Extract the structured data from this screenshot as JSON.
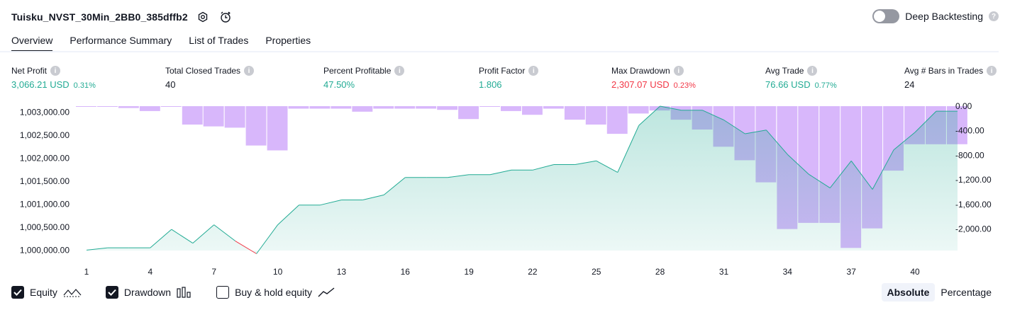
{
  "header": {
    "strategy_title": "Tuisku_NVST_30Min_2BB0_385dffb2"
  },
  "deep_backtesting": {
    "label": "Deep Backtesting",
    "enabled": false
  },
  "tabs": [
    {
      "label": "Overview",
      "active": true
    },
    {
      "label": "Performance Summary",
      "active": false
    },
    {
      "label": "List of Trades",
      "active": false
    },
    {
      "label": "Properties",
      "active": false
    }
  ],
  "metrics": {
    "net_profit": {
      "label": "Net Profit",
      "value": "3,066.21 USD",
      "pct": "0.31%"
    },
    "total_closed_trades": {
      "label": "Total Closed Trades",
      "value": "40"
    },
    "percent_profitable": {
      "label": "Percent Profitable",
      "value": "47.50%"
    },
    "profit_factor": {
      "label": "Profit Factor",
      "value": "1.806"
    },
    "max_drawdown": {
      "label": "Max Drawdown",
      "value": "2,307.07 USD",
      "pct": "0.23%"
    },
    "avg_trade": {
      "label": "Avg Trade",
      "value": "76.66 USD",
      "pct": "0.77%"
    },
    "avg_bars": {
      "label": "Avg # Bars in Trades",
      "value": "24"
    }
  },
  "colors": {
    "green": "#22ab94",
    "red": "#f23645",
    "drawdown_fill": "#d6b3fb",
    "equity_fill": "#cdeee6",
    "equity_line": "#22ab94"
  },
  "chart_data": {
    "type": "area",
    "x_ticks": [
      "1",
      "4",
      "7",
      "10",
      "13",
      "16",
      "19",
      "22",
      "25",
      "28",
      "31",
      "34",
      "37",
      "40"
    ],
    "left_axis": {
      "ticks": [
        "1,003,000.00",
        "1,002,500.00",
        "1,002,000.00",
        "1,001,500.00",
        "1,001,000.00",
        "1,000,500.00",
        "1,000,000.00"
      ],
      "range": [
        999990,
        1003130
      ]
    },
    "right_axis": {
      "ticks": [
        "0.00",
        "-400.00",
        "-800.00",
        "-1,200.00",
        "-1,600.00",
        "-2,000.00"
      ],
      "range": [
        0,
        -2350
      ]
    },
    "series": [
      {
        "name": "Equity",
        "x": [
          1,
          2,
          3,
          4,
          5,
          6,
          7,
          8,
          9,
          10,
          11,
          12,
          13,
          14,
          15,
          16,
          17,
          18,
          19,
          20,
          21,
          22,
          23,
          24,
          25,
          26,
          27,
          28,
          29,
          30,
          31,
          32,
          33,
          34,
          35,
          36,
          37,
          38,
          39,
          40,
          41,
          42
        ],
        "values": [
          1000000,
          1000050,
          1000050,
          1000050,
          1000450,
          1000150,
          1000550,
          1000200,
          999920,
          1000550,
          1000980,
          1000980,
          1001090,
          1001090,
          1001200,
          1001580,
          1001580,
          1001580,
          1001640,
          1001640,
          1001740,
          1001740,
          1001860,
          1001860,
          1001940,
          1001690,
          1002710,
          1003130,
          1003040,
          1003040,
          1002830,
          1002530,
          1002610,
          1002080,
          1001650,
          1001350,
          1001940,
          1001320,
          1002180,
          1002560,
          1003020,
          1003020
        ]
      },
      {
        "name": "Drawdown",
        "x": [
          1,
          2,
          3,
          4,
          5,
          6,
          7,
          8,
          9,
          10,
          11,
          12,
          13,
          14,
          15,
          16,
          17,
          18,
          19,
          20,
          21,
          22,
          23,
          24,
          25,
          26,
          27,
          28,
          29,
          30,
          31,
          32,
          33,
          34,
          35,
          36,
          37,
          38,
          39,
          40,
          41,
          42
        ],
        "values": [
          0,
          0,
          -30,
          -80,
          0,
          -300,
          -330,
          -350,
          -640,
          -720,
          -40,
          -40,
          -40,
          -90,
          -40,
          -40,
          -40,
          -60,
          -210,
          0,
          -80,
          -140,
          -40,
          -220,
          -300,
          -450,
          -120,
          -70,
          -220,
          -380,
          -660,
          -880,
          -1240,
          -2000,
          -1900,
          -1900,
          -2307,
          -1990,
          -1050,
          -620,
          -620,
          -620
        ]
      }
    ]
  },
  "legend": [
    {
      "label": "Equity",
      "checked": true
    },
    {
      "label": "Drawdown",
      "checked": true
    },
    {
      "label": "Buy & hold equity",
      "checked": false
    }
  ],
  "view_modes": [
    {
      "label": "Absolute",
      "active": true
    },
    {
      "label": "Percentage",
      "active": false
    }
  ]
}
